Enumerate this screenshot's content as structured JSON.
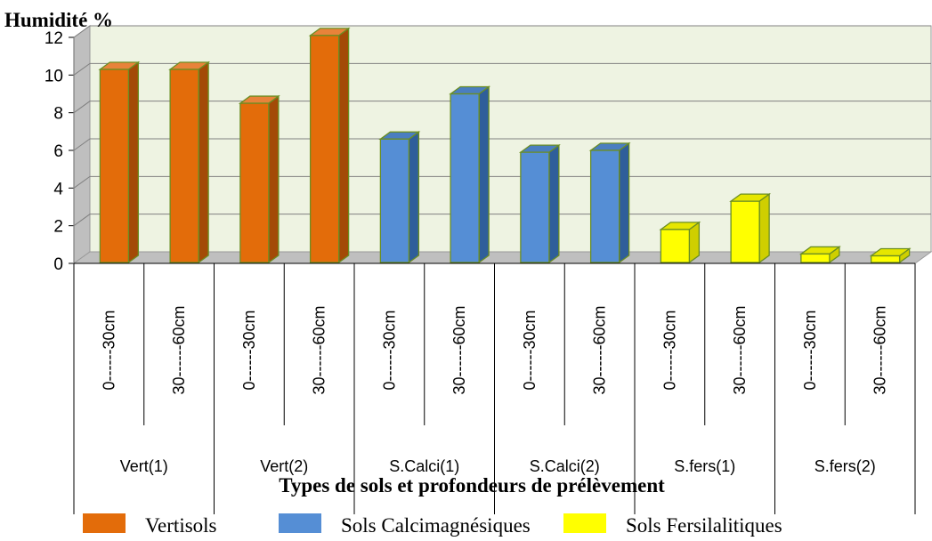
{
  "chart_data": {
    "type": "bar",
    "title": "",
    "ylabel": "Humidité %",
    "xlabel": "Types de sols et profondeurs de prélèvement",
    "ylim": [
      0,
      12
    ],
    "yticks": [
      0,
      2,
      4,
      6,
      8,
      10,
      12
    ],
    "grid": true,
    "three_d": true,
    "groups": [
      "Vert(1)",
      "Vert(2)",
      "S.Calci(1)",
      "S.Calci(2)",
      "S.fers(1)",
      "S.fers(2)"
    ],
    "depths": [
      "0------30cm",
      "30------60cm"
    ],
    "categories": [
      {
        "group": "Vert(1)",
        "depth": "0------30cm"
      },
      {
        "group": "Vert(1)",
        "depth": "30------60cm"
      },
      {
        "group": "Vert(2)",
        "depth": "0------30cm"
      },
      {
        "group": "Vert(2)",
        "depth": "30------60cm"
      },
      {
        "group": "S.Calci(1)",
        "depth": "0------30cm"
      },
      {
        "group": "S.Calci(1)",
        "depth": "30------60cm"
      },
      {
        "group": "S.Calci(2)",
        "depth": "0------30cm"
      },
      {
        "group": "S.Calci(2)",
        "depth": "30------60cm"
      },
      {
        "group": "S.fers(1)",
        "depth": "0------30cm"
      },
      {
        "group": "S.fers(1)",
        "depth": "30------60cm"
      },
      {
        "group": "S.fers(2)",
        "depth": "0------30cm"
      },
      {
        "group": "S.fers(2)",
        "depth": "30------60cm"
      }
    ],
    "values": [
      10.3,
      10.3,
      8.5,
      12.1,
      6.6,
      9.0,
      5.9,
      6.0,
      1.8,
      3.3,
      0.5,
      0.4
    ],
    "series_index": [
      0,
      0,
      0,
      0,
      1,
      1,
      1,
      1,
      2,
      2,
      2,
      2
    ],
    "legend_placement": "bottom",
    "series": [
      {
        "name": "Vertisols",
        "color": "#E36C0A",
        "side_color": "#A34A07",
        "top_color": "#E8833A",
        "edge_color": "#6B8E23"
      },
      {
        "name": "Sols Calcimagnésiques",
        "color": "#558ED5",
        "side_color": "#2F5E9A",
        "top_color": "#4A7EC0",
        "edge_color": "#6B8E23"
      },
      {
        "name": "Sols Fersilalitiques",
        "color": "#FFFF00",
        "side_color": "#CFCF00",
        "top_color": "#E6E600",
        "edge_color": "#6B8E23"
      }
    ],
    "colors": {
      "back_wall": "#EEF3E2",
      "floor": "#BFBFBF",
      "side_wall": "#BFBFBF",
      "grid": "#808080"
    }
  }
}
